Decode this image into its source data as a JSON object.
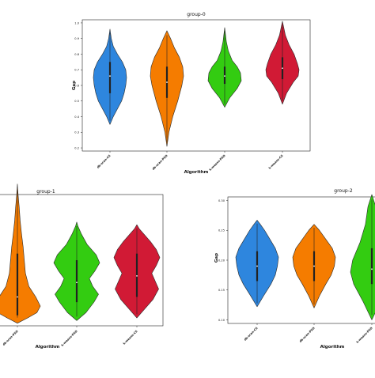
{
  "chart_data": [
    {
      "type": "violin",
      "title": "group-0",
      "xlabel": "Algorithm",
      "ylabel": "Gap",
      "ylim": [
        0.18,
        1.02
      ],
      "yticks": [
        "0.2",
        "0.3",
        "0.4",
        "0.5",
        "0.6",
        "0.7",
        "0.8",
        "0.9",
        "1.0"
      ],
      "grid": false,
      "series": [
        {
          "category": "db-scan-CS",
          "color": "#2e86de",
          "profile": [
            [
              0.35,
              0.0
            ],
            [
              0.4,
              0.2
            ],
            [
              0.45,
              0.45
            ],
            [
              0.5,
              0.7
            ],
            [
              0.55,
              0.85
            ],
            [
              0.6,
              0.95
            ],
            [
              0.65,
              1.0
            ],
            [
              0.7,
              0.95
            ],
            [
              0.75,
              0.75
            ],
            [
              0.8,
              0.45
            ],
            [
              0.85,
              0.2
            ],
            [
              0.9,
              0.08
            ],
            [
              0.96,
              0.0
            ]
          ],
          "box": [
            0.55,
            0.75
          ],
          "median": 0.66
        },
        {
          "category": "db-scan-PSO",
          "color": "#f57c00",
          "profile": [
            [
              0.21,
              0.0
            ],
            [
              0.3,
              0.12
            ],
            [
              0.4,
              0.35
            ],
            [
              0.5,
              0.65
            ],
            [
              0.6,
              0.9
            ],
            [
              0.66,
              1.0
            ],
            [
              0.72,
              0.95
            ],
            [
              0.78,
              0.75
            ],
            [
              0.84,
              0.45
            ],
            [
              0.9,
              0.22
            ],
            [
              0.95,
              0.0
            ]
          ],
          "box": [
            0.52,
            0.72
          ],
          "median": 0.62
        },
        {
          "category": "k-means-PSO",
          "color": "#33cc11",
          "profile": [
            [
              0.46,
              0.0
            ],
            [
              0.52,
              0.3
            ],
            [
              0.58,
              0.75
            ],
            [
              0.63,
              1.0
            ],
            [
              0.68,
              0.95
            ],
            [
              0.72,
              0.75
            ],
            [
              0.76,
              0.45
            ],
            [
              0.82,
              0.22
            ],
            [
              0.88,
              0.1
            ],
            [
              0.97,
              0.0
            ]
          ],
          "box": [
            0.61,
            0.72
          ],
          "median": 0.66
        },
        {
          "category": "k-means-CS",
          "color": "#d11a35",
          "profile": [
            [
              0.48,
              0.0
            ],
            [
              0.55,
              0.25
            ],
            [
              0.62,
              0.65
            ],
            [
              0.66,
              0.95
            ],
            [
              0.7,
              1.0
            ],
            [
              0.74,
              0.9
            ],
            [
              0.8,
              0.7
            ],
            [
              0.86,
              0.4
            ],
            [
              0.92,
              0.18
            ],
            [
              1.01,
              0.0
            ]
          ],
          "box": [
            0.64,
            0.78
          ],
          "median": 0.71
        }
      ]
    },
    {
      "type": "violin",
      "title": "group-1",
      "xlabel": "Algorithm",
      "ylabel": "",
      "ylim": [
        0,
        1
      ],
      "yticks": [],
      "grid": false,
      "series": [
        {
          "category": "db-scan-PSO",
          "color": "#f57c00",
          "profile": [
            [
              0.02,
              0.0
            ],
            [
              0.06,
              0.45
            ],
            [
              0.1,
              0.85
            ],
            [
              0.15,
              1.0
            ],
            [
              0.22,
              0.8
            ],
            [
              0.3,
              0.5
            ],
            [
              0.4,
              0.35
            ],
            [
              0.5,
              0.3
            ],
            [
              0.6,
              0.25
            ],
            [
              0.7,
              0.18
            ],
            [
              0.8,
              0.12
            ],
            [
              0.9,
              0.08
            ],
            [
              1.0,
              0.03
            ],
            [
              1.08,
              0.0
            ]
          ],
          "box": [
            0.08,
            0.55
          ],
          "median": 0.22
        },
        {
          "category": "k-means-PSO",
          "color": "#33cc11",
          "profile": [
            [
              0.04,
              0.0
            ],
            [
              0.1,
              0.4
            ],
            [
              0.18,
              0.75
            ],
            [
              0.24,
              0.95
            ],
            [
              0.3,
              0.7
            ],
            [
              0.36,
              0.55
            ],
            [
              0.42,
              0.8
            ],
            [
              0.48,
              1.0
            ],
            [
              0.54,
              0.85
            ],
            [
              0.62,
              0.45
            ],
            [
              0.7,
              0.2
            ],
            [
              0.76,
              0.05
            ],
            [
              0.79,
              0.0
            ]
          ],
          "box": [
            0.18,
            0.5
          ],
          "median": 0.33
        },
        {
          "category": "k-means-CS",
          "color": "#d11a35",
          "profile": [
            [
              0.06,
              0.0
            ],
            [
              0.12,
              0.3
            ],
            [
              0.2,
              0.7
            ],
            [
              0.28,
              0.95
            ],
            [
              0.34,
              0.8
            ],
            [
              0.4,
              0.65
            ],
            [
              0.46,
              0.85
            ],
            [
              0.52,
              1.0
            ],
            [
              0.58,
              0.85
            ],
            [
              0.64,
              0.6
            ],
            [
              0.7,
              0.3
            ],
            [
              0.74,
              0.1
            ],
            [
              0.77,
              0.0
            ]
          ],
          "box": [
            0.22,
            0.55
          ],
          "median": 0.38
        }
      ]
    },
    {
      "type": "violin",
      "title": "group-2",
      "xlabel": "Algorithm",
      "ylabel": "Gap",
      "ylim": [
        0.094,
        0.306
      ],
      "yticks": [
        "0.10",
        "0.15",
        "0.20",
        "0.25",
        "0.30"
      ],
      "grid": false,
      "series": [
        {
          "category": "db-scan-CS",
          "color": "#2e86de",
          "profile": [
            [
              0.122,
              0.0
            ],
            [
              0.14,
              0.3
            ],
            [
              0.16,
              0.65
            ],
            [
              0.175,
              0.85
            ],
            [
              0.19,
              0.95
            ],
            [
              0.205,
              1.0
            ],
            [
              0.22,
              0.85
            ],
            [
              0.235,
              0.6
            ],
            [
              0.25,
              0.35
            ],
            [
              0.26,
              0.15
            ],
            [
              0.267,
              0.0
            ]
          ],
          "box": [
            0.165,
            0.215
          ],
          "median": 0.19
        },
        {
          "category": "db-scan-PSO",
          "color": "#f57c00",
          "profile": [
            [
              0.12,
              0.0
            ],
            [
              0.14,
              0.25
            ],
            [
              0.16,
              0.55
            ],
            [
              0.175,
              0.8
            ],
            [
              0.19,
              0.95
            ],
            [
              0.205,
              1.0
            ],
            [
              0.22,
              0.85
            ],
            [
              0.235,
              0.55
            ],
            [
              0.25,
              0.25
            ],
            [
              0.26,
              0.0
            ]
          ],
          "box": [
            0.165,
            0.215
          ],
          "median": 0.19
        },
        {
          "category": "k-means-PSO",
          "color": "#33cc11",
          "profile": [
            [
              0.1,
              0.0
            ],
            [
              0.13,
              0.4
            ],
            [
              0.16,
              0.85
            ],
            [
              0.18,
              1.0
            ],
            [
              0.2,
              0.9
            ],
            [
              0.23,
              0.55
            ],
            [
              0.26,
              0.3
            ],
            [
              0.29,
              0.18
            ],
            [
              0.31,
              0.0
            ]
          ],
          "box": [
            0.16,
            0.22
          ],
          "median": 0.185
        }
      ]
    }
  ]
}
